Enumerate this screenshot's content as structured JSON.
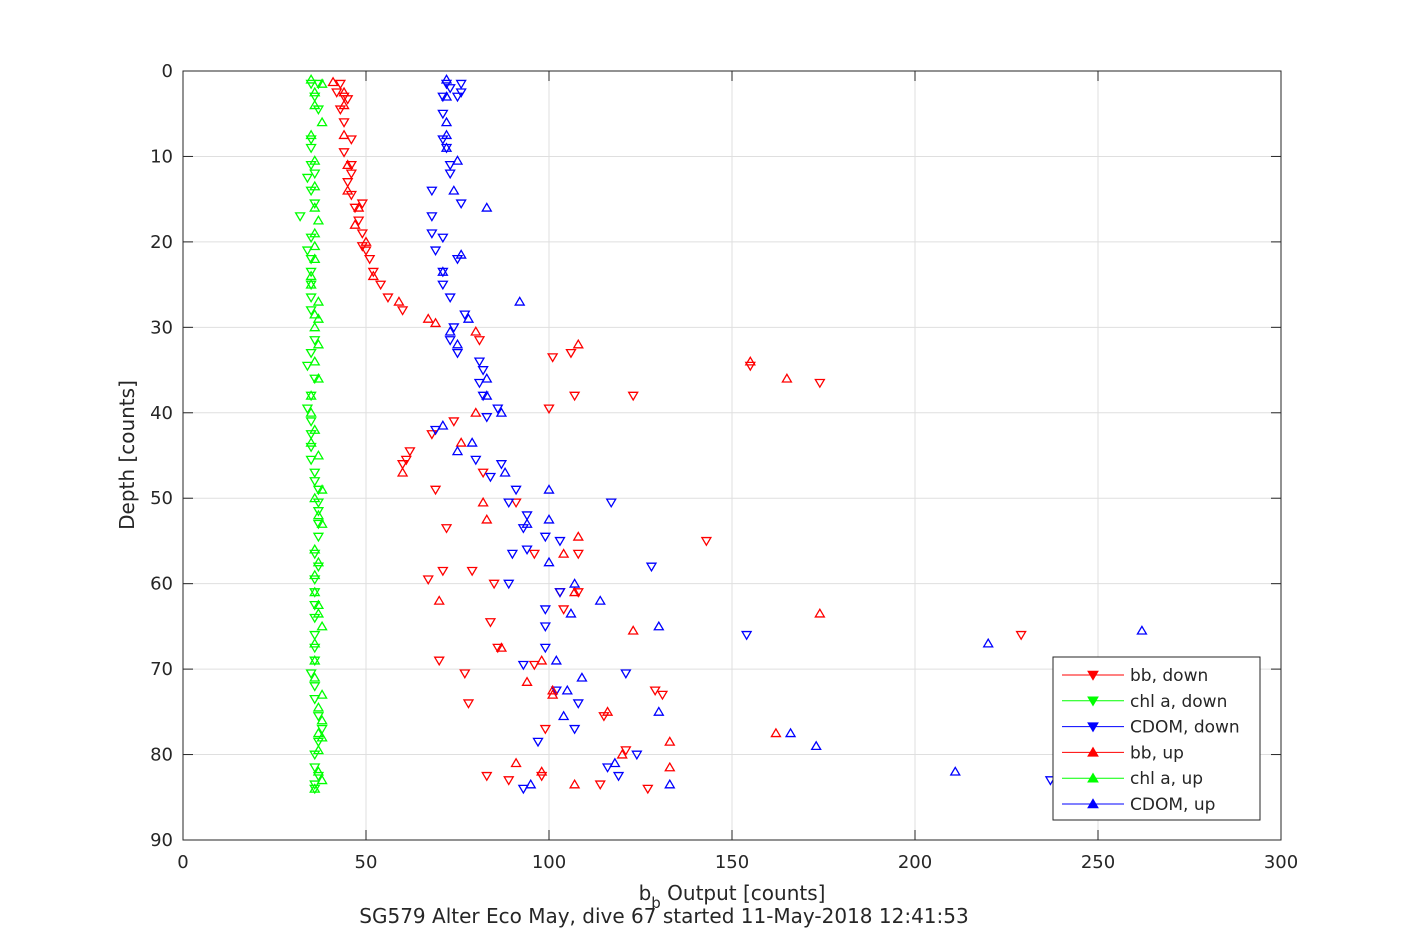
{
  "chart_data": {
    "type": "scatter",
    "xlabel": "b",
    "xlabel_sub": "b",
    "xlabel_rest": " Output [counts]",
    "ylabel": "Depth [counts]",
    "caption": "SG579 Alter Eco May, dive 67 started 11-May-2018 12:41:53",
    "xlim": [
      0,
      300
    ],
    "ylim": [
      0,
      90
    ],
    "y_reversed": true,
    "grid": true,
    "legend_position": "bottom-right",
    "x_ticks": [
      "0",
      "50",
      "100",
      "150",
      "200",
      "250",
      "300"
    ],
    "y_ticks": [
      "0",
      "10",
      "20",
      "30",
      "40",
      "50",
      "60",
      "70",
      "80",
      "90"
    ],
    "series": [
      {
        "name": "bb, down",
        "color": "#ff0000",
        "marker": "triangle-down",
        "points": [
          [
            43,
            1.5
          ],
          [
            42,
            2.5
          ],
          [
            44,
            3
          ],
          [
            45,
            3.3
          ],
          [
            43,
            4.5
          ],
          [
            44,
            6
          ],
          [
            46,
            8
          ],
          [
            44,
            9.5
          ],
          [
            46,
            11
          ],
          [
            46,
            12
          ],
          [
            45,
            13
          ],
          [
            46,
            14.5
          ],
          [
            49,
            15.5
          ],
          [
            47,
            16
          ],
          [
            48,
            17.5
          ],
          [
            49,
            19
          ],
          [
            49,
            20.5
          ],
          [
            50,
            21
          ],
          [
            51,
            22
          ],
          [
            52,
            23.5
          ],
          [
            54,
            25
          ],
          [
            56,
            26.5
          ],
          [
            60,
            28
          ],
          [
            62,
            44.5
          ],
          [
            61,
            45.5
          ],
          [
            60,
            46
          ],
          [
            81,
            31.5
          ],
          [
            106,
            33
          ],
          [
            101,
            33.5
          ],
          [
            155,
            34.5
          ],
          [
            174,
            36.5
          ],
          [
            107,
            38
          ],
          [
            123,
            38
          ],
          [
            100,
            39.5
          ],
          [
            74,
            41
          ],
          [
            68,
            42.5
          ],
          [
            69,
            49
          ],
          [
            82,
            47
          ],
          [
            91,
            50.5
          ],
          [
            72,
            53.5
          ],
          [
            143,
            55
          ],
          [
            108,
            56.5
          ],
          [
            96,
            56.5
          ],
          [
            71,
            58.5
          ],
          [
            79,
            58.5
          ],
          [
            67,
            59.5
          ],
          [
            85,
            60
          ],
          [
            108,
            61
          ],
          [
            104,
            63
          ],
          [
            84,
            64.5
          ],
          [
            115,
            75.5
          ],
          [
            131,
            73
          ],
          [
            78,
            74
          ],
          [
            103,
            61
          ],
          [
            86,
            67.5
          ],
          [
            96,
            69.5
          ],
          [
            77,
            70.5
          ],
          [
            129,
            72.5
          ],
          [
            99,
            77
          ],
          [
            121,
            79.5
          ],
          [
            83,
            82.5
          ],
          [
            89,
            83
          ],
          [
            98,
            82.5
          ],
          [
            114,
            83.5
          ],
          [
            127,
            84
          ],
          [
            229,
            66
          ],
          [
            70,
            69
          ]
        ]
      },
      {
        "name": "chl a, down",
        "color": "#00ff00",
        "marker": "triangle-down",
        "points": [
          [
            35,
            1.5
          ],
          [
            37,
            1.5
          ],
          [
            36,
            3
          ],
          [
            37,
            4.5
          ],
          [
            35,
            8
          ],
          [
            35,
            9
          ],
          [
            35,
            11
          ],
          [
            36,
            12
          ],
          [
            34,
            12.5
          ],
          [
            35,
            14
          ],
          [
            36,
            15.5
          ],
          [
            32,
            17
          ],
          [
            35,
            19.5
          ],
          [
            34,
            21
          ],
          [
            35,
            22
          ],
          [
            35,
            23.5
          ],
          [
            35,
            25
          ],
          [
            35,
            26.5
          ],
          [
            35,
            28
          ],
          [
            36,
            31.5
          ],
          [
            35,
            33
          ],
          [
            34,
            34.5
          ],
          [
            36,
            36
          ],
          [
            35,
            38
          ],
          [
            34,
            39.5
          ],
          [
            35,
            41
          ],
          [
            35,
            42.5
          ],
          [
            35,
            44
          ],
          [
            35,
            45.5
          ],
          [
            36,
            47
          ],
          [
            36,
            48
          ],
          [
            37,
            49
          ],
          [
            37,
            50.5
          ],
          [
            37,
            51.5
          ],
          [
            37,
            53
          ],
          [
            37,
            54.5
          ],
          [
            36,
            56.5
          ],
          [
            37,
            58
          ],
          [
            36,
            59.5
          ],
          [
            36,
            61
          ],
          [
            36,
            62.5
          ],
          [
            36,
            64
          ],
          [
            36,
            66
          ],
          [
            36,
            67.5
          ],
          [
            36,
            69
          ],
          [
            35,
            70.5
          ],
          [
            36,
            72
          ],
          [
            36,
            73.5
          ],
          [
            37,
            75.5
          ],
          [
            38,
            77
          ],
          [
            37,
            78.5
          ],
          [
            36,
            80
          ],
          [
            36,
            81.5
          ],
          [
            37,
            82.5
          ],
          [
            36,
            83.5
          ],
          [
            36,
            84
          ]
        ]
      },
      {
        "name": "CDOM, down",
        "color": "#0000ff",
        "marker": "triangle-down",
        "points": [
          [
            72,
            1.5
          ],
          [
            73,
            2
          ],
          [
            76,
            1.5
          ],
          [
            75,
            3
          ],
          [
            76,
            2.5
          ],
          [
            71,
            3
          ],
          [
            71,
            5
          ],
          [
            71,
            8
          ],
          [
            72,
            9
          ],
          [
            73,
            11
          ],
          [
            73,
            12
          ],
          [
            68,
            14
          ],
          [
            76,
            15.5
          ],
          [
            68,
            17
          ],
          [
            68,
            19
          ],
          [
            71,
            19.5
          ],
          [
            69,
            21
          ],
          [
            75,
            22
          ],
          [
            71,
            23.5
          ],
          [
            71,
            25
          ],
          [
            73,
            26.5
          ],
          [
            77,
            28.5
          ],
          [
            74,
            30
          ],
          [
            73,
            31.5
          ],
          [
            75,
            33
          ],
          [
            81,
            34
          ],
          [
            82,
            35
          ],
          [
            81,
            36.5
          ],
          [
            82,
            38
          ],
          [
            86,
            39.5
          ],
          [
            83,
            40.5
          ],
          [
            69,
            42
          ],
          [
            80,
            45.5
          ],
          [
            84,
            47.5
          ],
          [
            87,
            46
          ],
          [
            91,
            49
          ],
          [
            89,
            50.5
          ],
          [
            94,
            52
          ],
          [
            93,
            53.5
          ],
          [
            99,
            54.5
          ],
          [
            103,
            55
          ],
          [
            90,
            56.5
          ],
          [
            94,
            56
          ],
          [
            117,
            50.5
          ],
          [
            128,
            58
          ],
          [
            89,
            60
          ],
          [
            103,
            61
          ],
          [
            99,
            63
          ],
          [
            99,
            65
          ],
          [
            99,
            67.5
          ],
          [
            93,
            69.5
          ],
          [
            121,
            70.5
          ],
          [
            102,
            72.5
          ],
          [
            108,
            74
          ],
          [
            107,
            77
          ],
          [
            97,
            78.5
          ],
          [
            124,
            80
          ],
          [
            116,
            81.5
          ],
          [
            119,
            82.5
          ],
          [
            93,
            84
          ],
          [
            237,
            83
          ],
          [
            154,
            66
          ]
        ]
      },
      {
        "name": "bb, up",
        "color": "#ff0000",
        "marker": "triangle-up",
        "points": [
          [
            41,
            1.3
          ],
          [
            44,
            2.5
          ],
          [
            44,
            4
          ],
          [
            44,
            7.5
          ],
          [
            45,
            11
          ],
          [
            45,
            14
          ],
          [
            48,
            16
          ],
          [
            47,
            18
          ],
          [
            50,
            20
          ],
          [
            52,
            24
          ],
          [
            59,
            27
          ],
          [
            67,
            29
          ],
          [
            80,
            30.5
          ],
          [
            69,
            29.5
          ],
          [
            108,
            32
          ],
          [
            155,
            34
          ],
          [
            165,
            36
          ],
          [
            80,
            40
          ],
          [
            76,
            43.5
          ],
          [
            60,
            47
          ],
          [
            82,
            50.5
          ],
          [
            83,
            52.5
          ],
          [
            108,
            54.5
          ],
          [
            104,
            56.5
          ],
          [
            107,
            61
          ],
          [
            123,
            65.5
          ],
          [
            174,
            63.5
          ],
          [
            87,
            67.5
          ],
          [
            94,
            71.5
          ],
          [
            101,
            73
          ],
          [
            116,
            75
          ],
          [
            162,
            77.5
          ],
          [
            98,
            69
          ],
          [
            133,
            78.5
          ],
          [
            91,
            81
          ],
          [
            133,
            81.5
          ],
          [
            98,
            82
          ],
          [
            107,
            83.5
          ],
          [
            101,
            72.5
          ],
          [
            70,
            62
          ],
          [
            120,
            80
          ]
        ]
      },
      {
        "name": "chl a, up",
        "color": "#00ff00",
        "marker": "triangle-up",
        "points": [
          [
            35,
            1
          ],
          [
            38,
            1.5
          ],
          [
            36,
            2.5
          ],
          [
            36,
            4
          ],
          [
            38,
            6
          ],
          [
            35,
            7.5
          ],
          [
            36,
            10.5
          ],
          [
            36,
            13.5
          ],
          [
            36,
            16
          ],
          [
            37,
            17.5
          ],
          [
            36,
            19
          ],
          [
            36,
            20.5
          ],
          [
            36,
            22
          ],
          [
            35,
            24
          ],
          [
            35,
            25
          ],
          [
            37,
            27
          ],
          [
            36,
            28.5
          ],
          [
            37,
            29
          ],
          [
            36,
            30
          ],
          [
            37,
            32
          ],
          [
            36,
            34
          ],
          [
            37,
            36
          ],
          [
            35,
            38
          ],
          [
            35,
            40
          ],
          [
            36,
            42
          ],
          [
            35,
            43.5
          ],
          [
            37,
            45
          ],
          [
            38,
            49
          ],
          [
            36,
            50
          ],
          [
            37,
            52
          ],
          [
            38,
            53
          ],
          [
            36,
            56
          ],
          [
            37,
            57.5
          ],
          [
            36,
            59
          ],
          [
            36,
            61
          ],
          [
            37,
            62.5
          ],
          [
            37,
            63.5
          ],
          [
            38,
            65
          ],
          [
            36,
            67
          ],
          [
            36,
            69
          ],
          [
            36,
            71
          ],
          [
            38,
            73
          ],
          [
            37,
            74.5
          ],
          [
            38,
            76
          ],
          [
            37,
            77.5
          ],
          [
            38,
            78
          ],
          [
            37,
            79.5
          ],
          [
            37,
            82
          ],
          [
            38,
            83
          ],
          [
            36,
            84
          ]
        ]
      },
      {
        "name": "CDOM, up",
        "color": "#0000ff",
        "marker": "triangle-up",
        "points": [
          [
            72,
            1
          ],
          [
            72,
            3
          ],
          [
            72,
            6
          ],
          [
            72,
            7.5
          ],
          [
            72,
            9
          ],
          [
            75,
            10.5
          ],
          [
            74,
            14
          ],
          [
            83,
            16
          ],
          [
            76,
            21.5
          ],
          [
            71,
            23.5
          ],
          [
            92,
            27
          ],
          [
            78,
            29
          ],
          [
            73,
            30.5
          ],
          [
            75,
            32
          ],
          [
            83,
            36
          ],
          [
            83,
            38
          ],
          [
            87,
            40
          ],
          [
            71,
            41.5
          ],
          [
            79,
            43.5
          ],
          [
            75,
            44.5
          ],
          [
            88,
            47
          ],
          [
            100,
            49
          ],
          [
            100,
            52.5
          ],
          [
            94,
            53
          ],
          [
            100,
            57.5
          ],
          [
            107,
            60
          ],
          [
            114,
            62
          ],
          [
            106,
            63.5
          ],
          [
            130,
            65
          ],
          [
            102,
            69
          ],
          [
            109,
            71
          ],
          [
            105,
            72.5
          ],
          [
            104,
            75.5
          ],
          [
            130,
            75
          ],
          [
            166,
            77.5
          ],
          [
            173,
            79
          ],
          [
            220,
            67
          ],
          [
            262,
            65.5
          ],
          [
            211,
            82
          ],
          [
            118,
            81
          ],
          [
            133,
            83.5
          ],
          [
            95,
            83.5
          ]
        ]
      }
    ]
  }
}
